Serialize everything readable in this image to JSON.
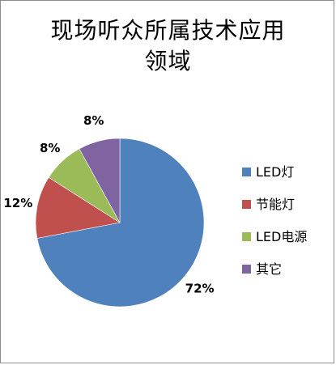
{
  "chart_data": {
    "type": "pie",
    "title_lines": [
      "现场听众所属技术应用",
      "领域"
    ],
    "categories": [
      "LED灯",
      "节能灯",
      "LED电源",
      "其它"
    ],
    "values": [
      72,
      12,
      8,
      8
    ],
    "value_labels": [
      "72%",
      "12%",
      "8%",
      "8%"
    ],
    "colors": [
      "#4f81bd",
      "#c0504d",
      "#9bbb59",
      "#8064a2"
    ],
    "legend_position": "right",
    "start": "12 o'clock, clockwise"
  }
}
